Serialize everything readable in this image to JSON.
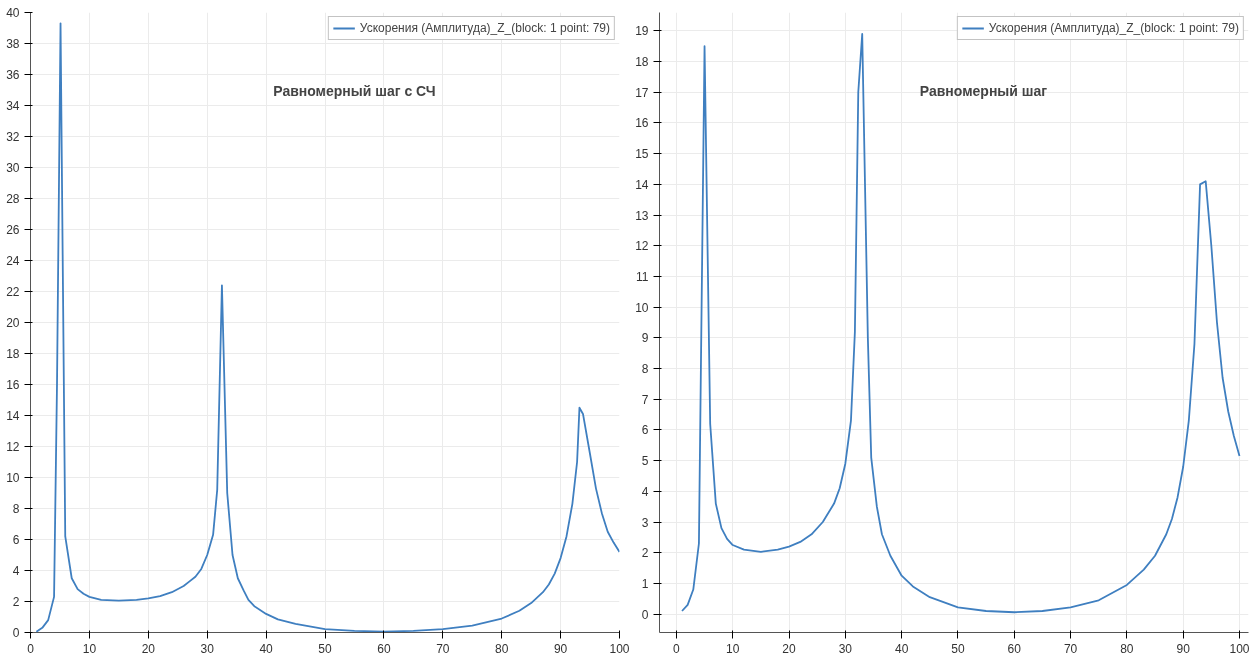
{
  "chart_data": [
    {
      "type": "line",
      "annotations": [
        "Равномерный шаг с СЧ"
      ],
      "xlim": [
        0,
        100
      ],
      "ylim": [
        0,
        40
      ],
      "xticks": [
        0,
        10,
        20,
        30,
        40,
        50,
        60,
        70,
        80,
        90,
        100
      ],
      "yticks": [
        0,
        2,
        4,
        6,
        8,
        10,
        12,
        14,
        16,
        18,
        20,
        22,
        24,
        26,
        28,
        30,
        32,
        34,
        36,
        38,
        40
      ],
      "grid": true,
      "legend": "top right",
      "marker": "none",
      "line_style": "solid",
      "series": [
        {
          "name": "Ускорения (Амплитуда)_Z_(block: 1 point: 79)",
          "color": "#3f7fc0",
          "x": [
            1,
            2,
            3,
            4,
            4.5,
            5.1,
            5.9,
            7,
            8,
            9,
            10,
            12,
            15,
            18,
            20,
            22,
            24,
            26,
            27,
            28,
            29,
            30,
            31,
            31.7,
            32.5,
            33.4,
            34.3,
            35.2,
            36.2,
            37,
            38,
            40,
            42,
            45,
            50,
            55,
            60,
            65,
            70,
            75,
            80,
            83,
            85,
            87,
            88,
            89,
            90,
            91,
            92,
            92.8,
            93.2,
            93.8,
            95,
            96,
            97,
            98,
            99,
            100
          ],
          "values": [
            0.05,
            0.3,
            0.8,
            2.3,
            16,
            39.3,
            6.2,
            3.5,
            2.8,
            2.5,
            2.3,
            2.1,
            2.05,
            2.1,
            2.2,
            2.35,
            2.6,
            3.0,
            3.3,
            3.6,
            4.1,
            5.0,
            6.3,
            9.2,
            22.4,
            9.0,
            5.0,
            3.5,
            2.7,
            2.1,
            1.7,
            1.2,
            0.85,
            0.55,
            0.22,
            0.1,
            0.05,
            0.1,
            0.22,
            0.45,
            0.9,
            1.4,
            1.9,
            2.6,
            3.1,
            3.8,
            4.8,
            6.2,
            8.3,
            11.0,
            14.5,
            14.1,
            11.5,
            9.3,
            7.7,
            6.5,
            5.8,
            5.2
          ]
        }
      ]
    },
    {
      "type": "line",
      "annotations": [
        "Равномерный шаг"
      ],
      "xlim": [
        -3,
        101.6
      ],
      "ylim": [
        -0.6,
        19.6
      ],
      "xticks": [
        0,
        10,
        20,
        30,
        40,
        50,
        60,
        70,
        80,
        90,
        100
      ],
      "yticks": [
        0,
        1,
        2,
        3,
        4,
        5,
        6,
        7,
        8,
        9,
        10,
        11,
        12,
        13,
        14,
        15,
        16,
        17,
        18,
        19
      ],
      "grid": true,
      "legend": "top right",
      "marker": "none",
      "line_style": "solid",
      "series": [
        {
          "name": "Ускорения (Амплитуда)_Z_(block: 1 point: 79)",
          "color": "#3f7fc0",
          "x": [
            1,
            2,
            3,
            4,
            5,
            6,
            7,
            8,
            9,
            10,
            12,
            15,
            18,
            20,
            22,
            24,
            26,
            27,
            28,
            29,
            30,
            31,
            31.7,
            32.3,
            33,
            34,
            34.6,
            35.6,
            36.5,
            38,
            40,
            42,
            45,
            50,
            55,
            60,
            65,
            70,
            75,
            80,
            83,
            85,
            87,
            88,
            89,
            90,
            91,
            92,
            93,
            94,
            95,
            96,
            97,
            98,
            99,
            100
          ],
          "values": [
            0.1,
            0.3,
            0.8,
            2.3,
            18.5,
            6.2,
            3.6,
            2.8,
            2.45,
            2.25,
            2.1,
            2.03,
            2.1,
            2.2,
            2.35,
            2.6,
            3.0,
            3.3,
            3.6,
            4.1,
            4.9,
            6.3,
            9.2,
            17.0,
            18.9,
            9.0,
            5.1,
            3.5,
            2.6,
            1.9,
            1.25,
            0.9,
            0.55,
            0.22,
            0.1,
            0.06,
            0.1,
            0.22,
            0.45,
            0.95,
            1.45,
            1.9,
            2.6,
            3.1,
            3.8,
            4.8,
            6.3,
            8.8,
            14.0,
            14.1,
            12.0,
            9.5,
            7.7,
            6.6,
            5.8,
            5.15
          ]
        }
      ]
    }
  ]
}
